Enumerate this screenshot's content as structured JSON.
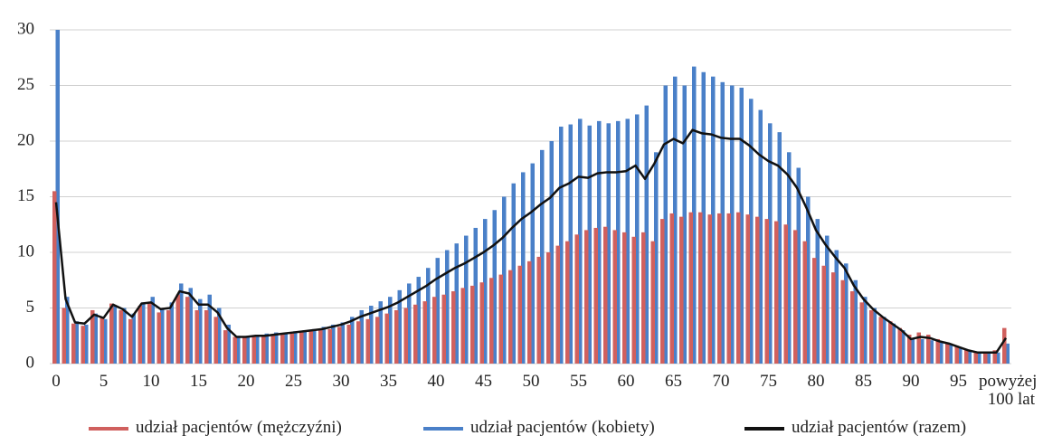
{
  "chart_data": {
    "type": "bar_line",
    "categories": [
      "0",
      null,
      null,
      null,
      null,
      "5",
      null,
      null,
      null,
      null,
      "10",
      null,
      null,
      null,
      null,
      "15",
      null,
      null,
      null,
      null,
      "20",
      null,
      null,
      null,
      null,
      "25",
      null,
      null,
      null,
      null,
      "30",
      null,
      null,
      null,
      null,
      "35",
      null,
      null,
      null,
      null,
      "40",
      null,
      null,
      null,
      null,
      "45",
      null,
      null,
      null,
      null,
      "50",
      null,
      null,
      null,
      null,
      "55",
      null,
      null,
      null,
      null,
      "60",
      null,
      null,
      null,
      null,
      "65",
      null,
      null,
      null,
      null,
      "70",
      null,
      null,
      null,
      null,
      "75",
      null,
      null,
      null,
      null,
      "80",
      null,
      null,
      null,
      null,
      "85",
      null,
      null,
      null,
      null,
      "90",
      null,
      null,
      null,
      null,
      "95",
      null,
      null,
      null,
      null,
      "powyżej 100 lat"
    ],
    "series": [
      {
        "name": "udział pacjentów (kobiety)",
        "color": "#4a80c8",
        "kind": "bar",
        "values": [
          30,
          6,
          3.8,
          3.5,
          4.5,
          4,
          5.2,
          5,
          4.5,
          5.5,
          6,
          5,
          5.5,
          7.2,
          6.8,
          5.8,
          6.2,
          5,
          3.5,
          2.5,
          2.5,
          2.6,
          2.7,
          2.8,
          2.8,
          2.9,
          3,
          3.1,
          3.3,
          3.5,
          3.7,
          4.2,
          4.8,
          5.2,
          5.6,
          6,
          6.6,
          7.2,
          7.8,
          8.6,
          9.5,
          10.2,
          10.8,
          11.5,
          12.2,
          13,
          13.8,
          15,
          16.2,
          17.2,
          18,
          19.2,
          20,
          21.3,
          21.5,
          22,
          21.4,
          21.8,
          21.6,
          21.8,
          22,
          22.4,
          23.2,
          19,
          25,
          25.8,
          25,
          26.7,
          26.2,
          25.8,
          25.3,
          25,
          24.8,
          23.8,
          22.8,
          21.6,
          20.8,
          19,
          17.6,
          15,
          13,
          11.5,
          10.2,
          9,
          7.5,
          6,
          5,
          4.2,
          3.6,
          3,
          2.2,
          2.2,
          2.1,
          1.9,
          1.8,
          1.5,
          1.2,
          1,
          1,
          1,
          1.8
        ]
      },
      {
        "name": "udział pacjentów (mężczyźni)",
        "color": "#d0605e",
        "kind": "bar",
        "values": [
          15.5,
          5,
          3.6,
          3.4,
          4.8,
          4.2,
          5.4,
          4.8,
          4,
          5.2,
          5.4,
          4.6,
          4.8,
          6.2,
          6,
          4.8,
          4.8,
          4.2,
          3,
          2.4,
          2.4,
          2.5,
          2.5,
          2.6,
          2.6,
          2.7,
          2.8,
          2.9,
          3,
          3.1,
          3.3,
          3.5,
          3.8,
          4,
          4.2,
          4.5,
          4.8,
          5,
          5.3,
          5.6,
          6,
          6.2,
          6.5,
          6.8,
          7,
          7.3,
          7.7,
          8,
          8.4,
          8.8,
          9.2,
          9.6,
          10,
          10.6,
          11,
          11.6,
          12,
          12.2,
          12.3,
          12,
          11.8,
          11.4,
          11.8,
          11,
          13,
          13.5,
          13.2,
          13.6,
          13.6,
          13.4,
          13.5,
          13.5,
          13.6,
          13.4,
          13.2,
          13,
          12.8,
          12.5,
          12,
          11,
          9.5,
          8.8,
          8.2,
          7.5,
          6.5,
          5.5,
          4.8,
          4.2,
          3.8,
          3.2,
          2.6,
          2.8,
          2.6,
          2.2,
          1.9,
          1.6,
          1.3,
          1,
          1,
          1.2,
          3.2
        ]
      },
      {
        "name": "udział pacjentów (razem)",
        "color": "#111111",
        "kind": "line",
        "values": [
          14.5,
          5.8,
          3.7,
          3.6,
          4.4,
          4.1,
          5.3,
          4.9,
          4.2,
          5.4,
          5.5,
          4.9,
          5,
          6.5,
          6.3,
          5.3,
          5.3,
          4.6,
          3.2,
          2.4,
          2.4,
          2.5,
          2.5,
          2.6,
          2.7,
          2.8,
          2.9,
          3,
          3.1,
          3.3,
          3.5,
          3.8,
          4.2,
          4.5,
          4.8,
          5.1,
          5.5,
          6,
          6.5,
          7,
          7.6,
          8.1,
          8.6,
          9,
          9.5,
          10,
          10.6,
          11.3,
          12.2,
          13,
          13.6,
          14.3,
          14.9,
          15.8,
          16.2,
          16.8,
          16.7,
          17.1,
          17.2,
          17.2,
          17.3,
          17.8,
          16.6,
          18,
          19.7,
          20.2,
          19.8,
          21,
          20.7,
          20.6,
          20.3,
          20.2,
          20.2,
          19.6,
          18.8,
          18.2,
          17.8,
          17,
          15.8,
          14,
          12,
          10.7,
          9.6,
          8.6,
          7,
          5.8,
          4.9,
          4.2,
          3.6,
          3,
          2.2,
          2.4,
          2.3,
          2,
          1.8,
          1.5,
          1.2,
          1,
          1,
          1,
          2.3
        ]
      }
    ],
    "legend_order": [
      1,
      0,
      2
    ],
    "ylim": [
      0,
      30
    ],
    "yticks": [
      0,
      5,
      10,
      15,
      20,
      25,
      30
    ],
    "grid": true
  }
}
